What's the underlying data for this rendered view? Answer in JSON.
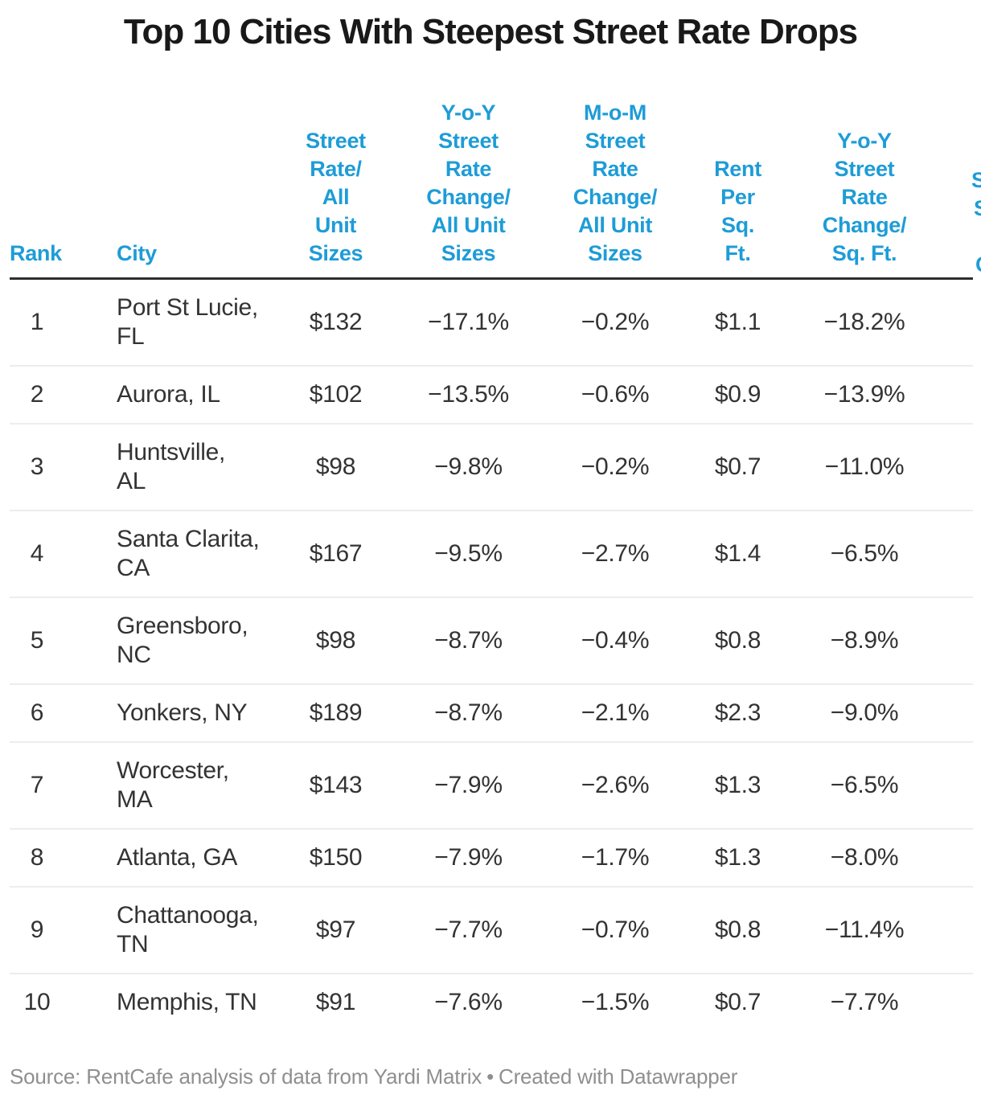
{
  "title": "Top 10 Cities With Steepest Street Rate Drops",
  "colors": {
    "header_blue": "#1e9cd7",
    "title_text": "#191919",
    "body_text": "#333333",
    "header_rule": "#2e2e2e",
    "row_divider": "#ededed",
    "footer_gray": "#8f8f8f"
  },
  "table": {
    "columns": [
      {
        "id": "rank",
        "label": "Rank"
      },
      {
        "id": "city",
        "label": "City"
      },
      {
        "id": "street_rate_all",
        "label": "Street\nRate/\nAll\nUnit\nSizes"
      },
      {
        "id": "yoy_all",
        "label": "Y-o-Y\nStreet\nRate\nChange/\nAll Unit\nSizes"
      },
      {
        "id": "mom_all",
        "label": "M-o-M\nStreet\nRate\nChange/\nAll Unit\nSizes"
      },
      {
        "id": "rent_sqft",
        "label": "Rent\nPer\nSq.\nFt."
      },
      {
        "id": "yoy_sqft",
        "label": "Y-o-Y\nStreet\nRate\nChange/\nSq. Ft."
      }
    ],
    "clipped_column_fragments": [
      {
        "text": "S"
      },
      {
        "text": "S"
      },
      {
        "text": "C"
      }
    ],
    "rows": [
      {
        "rank": "1",
        "city": "Port St Lucie,\nFL",
        "street_rate_all": "$132",
        "yoy_all": "−17.1%",
        "mom_all": "−0.2%",
        "rent_sqft": "$1.1",
        "yoy_sqft": "−18.2%"
      },
      {
        "rank": "2",
        "city": "Aurora, IL",
        "street_rate_all": "$102",
        "yoy_all": "−13.5%",
        "mom_all": "−0.6%",
        "rent_sqft": "$0.9",
        "yoy_sqft": "−13.9%"
      },
      {
        "rank": "3",
        "city": "Huntsville,\nAL",
        "street_rate_all": "$98",
        "yoy_all": "−9.8%",
        "mom_all": "−0.2%",
        "rent_sqft": "$0.7",
        "yoy_sqft": "−11.0%"
      },
      {
        "rank": "4",
        "city": "Santa Clarita,\nCA",
        "street_rate_all": "$167",
        "yoy_all": "−9.5%",
        "mom_all": "−2.7%",
        "rent_sqft": "$1.4",
        "yoy_sqft": "−6.5%"
      },
      {
        "rank": "5",
        "city": "Greensboro,\nNC",
        "street_rate_all": "$98",
        "yoy_all": "−8.7%",
        "mom_all": "−0.4%",
        "rent_sqft": "$0.8",
        "yoy_sqft": "−8.9%"
      },
      {
        "rank": "6",
        "city": "Yonkers, NY",
        "street_rate_all": "$189",
        "yoy_all": "−8.7%",
        "mom_all": "−2.1%",
        "rent_sqft": "$2.3",
        "yoy_sqft": "−9.0%"
      },
      {
        "rank": "7",
        "city": "Worcester,\nMA",
        "street_rate_all": "$143",
        "yoy_all": "−7.9%",
        "mom_all": "−2.6%",
        "rent_sqft": "$1.3",
        "yoy_sqft": "−6.5%"
      },
      {
        "rank": "8",
        "city": "Atlanta, GA",
        "street_rate_all": "$150",
        "yoy_all": "−7.9%",
        "mom_all": "−1.7%",
        "rent_sqft": "$1.3",
        "yoy_sqft": "−8.0%"
      },
      {
        "rank": "9",
        "city": "Chattanooga,\nTN",
        "street_rate_all": "$97",
        "yoy_all": "−7.7%",
        "mom_all": "−0.7%",
        "rent_sqft": "$0.8",
        "yoy_sqft": "−11.4%"
      },
      {
        "rank": "10",
        "city": "Memphis, TN",
        "street_rate_all": "$91",
        "yoy_all": "−7.6%",
        "mom_all": "−1.5%",
        "rent_sqft": "$0.7",
        "yoy_sqft": "−7.7%"
      }
    ]
  },
  "footer": {
    "source_text": "Source: RentCafe analysis of data from Yardi Matrix",
    "separator": "•",
    "attribution": "Created with Datawrapper"
  }
}
